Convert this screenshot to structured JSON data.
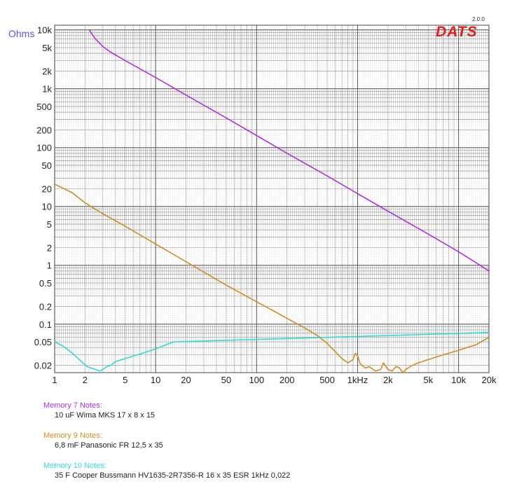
{
  "logo": {
    "text": "DATS",
    "version": "2.0.0"
  },
  "chart_data": {
    "type": "line",
    "title": "",
    "xlabel": "",
    "ylabel": "Ohms",
    "xscale": "log",
    "yscale": "log",
    "xlim": [
      1,
      20000
    ],
    "ylim": [
      0.015,
      12000
    ],
    "grid": true,
    "x_tick_labels": [
      {
        "v": 1,
        "t": "1"
      },
      {
        "v": 2,
        "t": "2"
      },
      {
        "v": 5,
        "t": "5"
      },
      {
        "v": 10,
        "t": "10"
      },
      {
        "v": 20,
        "t": "20"
      },
      {
        "v": 50,
        "t": "50"
      },
      {
        "v": 100,
        "t": "100"
      },
      {
        "v": 200,
        "t": "200"
      },
      {
        "v": 500,
        "t": "500"
      },
      {
        "v": 1000,
        "t": "1kHz"
      },
      {
        "v": 2000,
        "t": "2k"
      },
      {
        "v": 5000,
        "t": "5k"
      },
      {
        "v": 10000,
        "t": "10k"
      },
      {
        "v": 20000,
        "t": "20k"
      }
    ],
    "y_tick_labels": [
      {
        "v": 10000,
        "t": "10k"
      },
      {
        "v": 5000,
        "t": "5k"
      },
      {
        "v": 2000,
        "t": "2k"
      },
      {
        "v": 1000,
        "t": "1k"
      },
      {
        "v": 500,
        "t": "500"
      },
      {
        "v": 200,
        "t": "200"
      },
      {
        "v": 100,
        "t": "100"
      },
      {
        "v": 50,
        "t": "50"
      },
      {
        "v": 20,
        "t": "20"
      },
      {
        "v": 10,
        "t": "10"
      },
      {
        "v": 5,
        "t": "5"
      },
      {
        "v": 2,
        "t": "2"
      },
      {
        "v": 1,
        "t": "1"
      },
      {
        "v": 0.5,
        "t": "0.5"
      },
      {
        "v": 0.2,
        "t": "0.2"
      },
      {
        "v": 0.1,
        "t": "0.1"
      },
      {
        "v": 0.05,
        "t": "0.05"
      },
      {
        "v": 0.02,
        "t": "0.02"
      }
    ],
    "series": [
      {
        "name": "Memory 7",
        "color": "#b030e0",
        "x": [
          2.2,
          2.5,
          3,
          3.5,
          5,
          10,
          20,
          50,
          100,
          200,
          500,
          1000,
          2000,
          5000,
          10000,
          15000,
          20000
        ],
        "y": [
          10000,
          7200,
          5200,
          4300,
          3000,
          1550,
          780,
          320,
          160,
          80,
          33,
          16.5,
          8.3,
          3.4,
          1.7,
          1.1,
          0.8
        ]
      },
      {
        "name": "Memory 9",
        "color": "#d08c1e",
        "x": [
          1,
          1.5,
          2,
          3,
          5,
          10,
          20,
          50,
          100,
          150,
          200,
          300,
          400,
          500,
          600,
          700,
          800,
          900,
          950,
          1000,
          1050,
          1100,
          1200,
          1300,
          1500,
          1700,
          1800,
          2000,
          2200,
          2400,
          2600,
          2800,
          3000,
          3500,
          4000,
          5000,
          7000,
          10000,
          15000,
          20000
        ],
        "y": [
          24,
          17,
          11.5,
          7.5,
          4.6,
          2.3,
          1.15,
          0.46,
          0.24,
          0.165,
          0.125,
          0.086,
          0.064,
          0.047,
          0.034,
          0.026,
          0.022,
          0.025,
          0.032,
          0.029,
          0.022,
          0.02,
          0.018,
          0.019,
          0.016,
          0.017,
          0.022,
          0.017,
          0.016,
          0.019,
          0.018,
          0.015,
          0.017,
          0.02,
          0.022,
          0.025,
          0.03,
          0.036,
          0.045,
          0.06
        ]
      },
      {
        "name": "Memory 10",
        "color": "#30d8d8",
        "x": [
          1,
          1.2,
          1.5,
          1.8,
          2.1,
          2.8,
          3,
          3.3,
          3.6,
          4,
          5,
          7,
          10,
          15,
          20000
        ],
        "y": [
          0.05,
          0.043,
          0.032,
          0.024,
          0.019,
          0.016,
          0.017,
          0.019,
          0.02,
          0.023,
          0.026,
          0.031,
          0.038,
          0.05,
          0.072
        ]
      }
    ]
  },
  "notes": [
    {
      "title": "Memory 7 Notes:",
      "text": "10 uF Wima MKS 17 x 8 x 15",
      "color": "#b030e0"
    },
    {
      "title": "Memory 9 Notes:",
      "text": "6,8 mF Panasonic FR 12,5 x 35",
      "color": "#d08c1e"
    },
    {
      "title": "Memory 10 Notes:",
      "text": "35 F Cooper Bussmann HV1635-2R7356-R 16 x 35 ESR 1kHz 0,022",
      "color": "#30d8d8"
    }
  ]
}
